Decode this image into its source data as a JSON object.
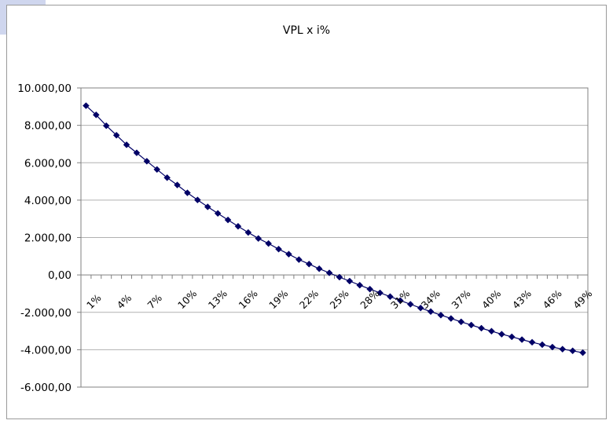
{
  "colors": {
    "series": "#000066",
    "grid": "#b0b0b0",
    "axis": "#808080"
  },
  "chart_data": {
    "type": "line",
    "title": "VPL x i%",
    "xlabel": "",
    "ylabel": "",
    "ylim": [
      -6000,
      10000
    ],
    "yticks": [
      -6000,
      -4000,
      -2000,
      0,
      2000,
      4000,
      6000,
      8000,
      10000
    ],
    "ytick_labels": [
      "-6.000,00",
      "-4.000,00",
      "-2.000,00",
      "0,00",
      "2.000,00",
      "4.000,00",
      "6.000,00",
      "8.000,00",
      "10.000,00"
    ],
    "categories": [
      "1%",
      "2%",
      "3%",
      "4%",
      "5%",
      "6%",
      "7%",
      "8%",
      "9%",
      "10%",
      "11%",
      "12%",
      "13%",
      "14%",
      "15%",
      "16%",
      "17%",
      "18%",
      "19%",
      "20%",
      "21%",
      "22%",
      "23%",
      "24%",
      "25%",
      "26%",
      "27%",
      "28%",
      "29%",
      "30%",
      "31%",
      "32%",
      "33%",
      "34%",
      "35%",
      "36%",
      "37%",
      "38%",
      "39%",
      "40%",
      "41%",
      "42%",
      "43%",
      "44%",
      "45%",
      "46%",
      "47%",
      "48%",
      "49%",
      "50%"
    ],
    "xtick_labels": [
      "1%",
      "4%",
      "7%",
      "10%",
      "13%",
      "16%",
      "19%",
      "22%",
      "25%",
      "28%",
      "31%",
      "34%",
      "37%",
      "40%",
      "43%",
      "46%",
      "49%"
    ],
    "grid": true,
    "legend": "none",
    "series": [
      {
        "values": [
          9050,
          8560,
          7980,
          7470,
          6960,
          6530,
          6080,
          5640,
          5200,
          4810,
          4390,
          4010,
          3640,
          3290,
          2940,
          2600,
          2270,
          1950,
          1680,
          1380,
          1110,
          820,
          580,
          330,
          110,
          -120,
          -330,
          -550,
          -760,
          -960,
          -1160,
          -1370,
          -1570,
          -1770,
          -1960,
          -2150,
          -2330,
          -2510,
          -2680,
          -2850,
          -3010,
          -3170,
          -3310,
          -3460,
          -3600,
          -3730,
          -3860,
          -3970,
          -4060,
          -4160
        ]
      }
    ]
  }
}
